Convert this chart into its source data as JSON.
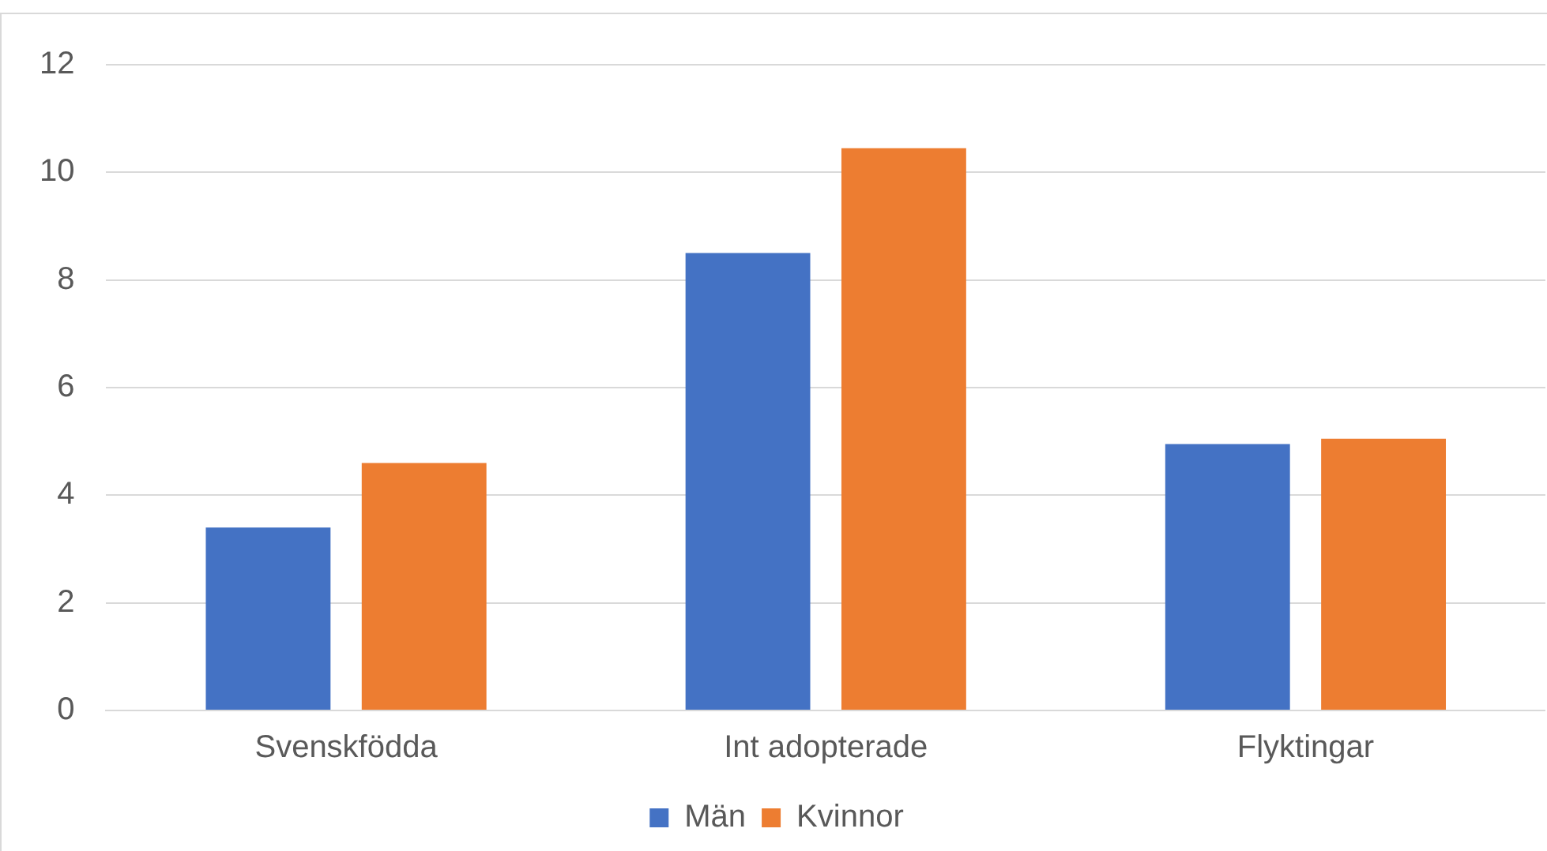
{
  "chart_data": {
    "type": "bar",
    "categories": [
      "Svenskfödda",
      "Int adopterade",
      "Flyktingar"
    ],
    "series": [
      {
        "name": "Män",
        "color": "#4472c4",
        "values": [
          3.4,
          8.5,
          4.95
        ]
      },
      {
        "name": "Kvinnor",
        "color": "#ed7d31",
        "values": [
          4.6,
          10.45,
          5.05
        ]
      }
    ],
    "ylim": [
      0,
      12
    ],
    "yticks": [
      0,
      2,
      4,
      6,
      8,
      10,
      12
    ],
    "grid": "y",
    "legend": "bottom"
  }
}
